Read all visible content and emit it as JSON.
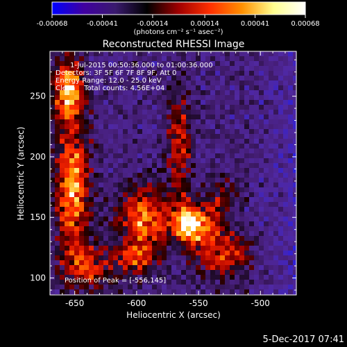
{
  "chart_data": {
    "type": "heatmap",
    "title": "Reconstructed RHESSI Image",
    "xlabel": "Heliocentric X (arcsec)",
    "ylabel": "Heliocentric Y (arcsec)",
    "xlim": [
      -670,
      -471
    ],
    "ylim": [
      86,
      287
    ],
    "xticks": [
      -650,
      -600,
      -550,
      -500
    ],
    "xtick_labels": [
      "-650",
      "-600",
      "-550",
      "-500"
    ],
    "yticks": [
      100,
      150,
      200,
      250
    ],
    "ytick_labels": [
      "100",
      "150",
      "200",
      "250"
    ],
    "colorbar": {
      "range": [
        -0.00068,
        0.00068
      ],
      "ticks": [
        -0.00068,
        -0.00041,
        -0.00014,
        0.00014,
        0.00041,
        0.00068
      ],
      "tick_labels": [
        "-0.00068",
        "-0.00041",
        "-0.00014",
        "0.00014",
        "0.00041",
        "0.00068"
      ],
      "units_label": "(photons cm⁻² s⁻¹ asec⁻²)",
      "colors": [
        "#0000ff",
        "#4000a0",
        "#3a1a6e",
        "#000000",
        "#a00000",
        "#ff3000",
        "#ff9000",
        "#ffff90",
        "#ffffff"
      ]
    },
    "info": {
      "time_range": "1-Jul-2015 00:50:36.000 to 01:00:36.000",
      "detectors": "Detectors: 3F 5F 6F 7F 8F 9F, Att 0",
      "energy": "Energy Range: 12.0 - 25.0 keV",
      "method": "Clean    Total counts: 4.56E+04"
    },
    "peak_label": "Position of Peak = [-556,145]",
    "peak_position": [
      -556,
      145
    ],
    "bright_regions": [
      {
        "x": -655,
        "y": 255,
        "sx": 9,
        "sy": 18,
        "amp": 1.2
      },
      {
        "x": -652,
        "y": 175,
        "sx": 10,
        "sy": 35,
        "amp": 1.1
      },
      {
        "x": -640,
        "y": 110,
        "sx": 14,
        "sy": 14,
        "amp": 0.7
      },
      {
        "x": -595,
        "y": 150,
        "sx": 14,
        "sy": 18,
        "amp": 1.0
      },
      {
        "x": -600,
        "y": 115,
        "sx": 12,
        "sy": 10,
        "amp": 0.7
      },
      {
        "x": -556,
        "y": 145,
        "sx": 12,
        "sy": 12,
        "amp": 1.35
      },
      {
        "x": -565,
        "y": 210,
        "sx": 7,
        "sy": 30,
        "amp": 0.7
      },
      {
        "x": -530,
        "y": 120,
        "sx": 15,
        "sy": 14,
        "amp": 0.8
      },
      {
        "x": -530,
        "y": 165,
        "sx": 8,
        "sy": 12,
        "amp": 0.5
      }
    ]
  },
  "footer": {
    "date": "5-Dec-2017 07:41"
  }
}
